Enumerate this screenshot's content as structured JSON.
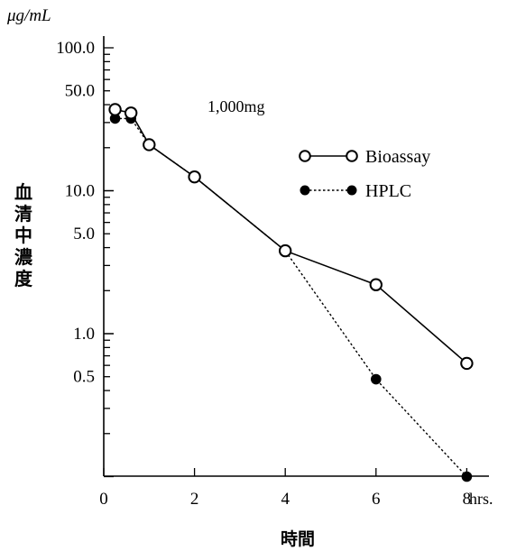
{
  "chart_data": {
    "type": "line",
    "scale_y": "log",
    "ylim": [
      0.1,
      100
    ],
    "xlim": [
      0,
      8.5
    ],
    "y_unit": "μg/mL",
    "ylabel": "血清中濃度",
    "xlabel": "時間",
    "annotation": "1,000mg",
    "x_ticks": [
      "0",
      "2",
      "4",
      "6",
      "8"
    ],
    "x_tick_values": [
      0,
      2,
      4,
      6,
      8
    ],
    "x_unit": "hrs.",
    "y_tick_labels": [
      {
        "value": 100,
        "label": "100.0"
      },
      {
        "value": 50,
        "label": "50.0"
      },
      {
        "value": 10,
        "label": "10.0"
      },
      {
        "value": 5,
        "label": "5.0"
      },
      {
        "value": 1,
        "label": "1.0"
      },
      {
        "value": 0.5,
        "label": "0.5"
      }
    ],
    "grid": false,
    "legend_position": "right",
    "series": [
      {
        "name": "Bioassay",
        "marker": "open-circle",
        "line": "solid",
        "x": [
          0.25,
          0.6,
          1,
          2,
          4,
          6,
          8
        ],
        "y": [
          37,
          35,
          21,
          12.5,
          3.8,
          2.2,
          0.62
        ]
      },
      {
        "name": "HPLC",
        "marker": "filled-circle",
        "line": "dotted",
        "x": [
          0.25,
          0.6,
          1,
          2,
          4,
          6,
          8
        ],
        "y": [
          32,
          32,
          21,
          12.5,
          3.8,
          0.48,
          0.1
        ]
      }
    ]
  }
}
